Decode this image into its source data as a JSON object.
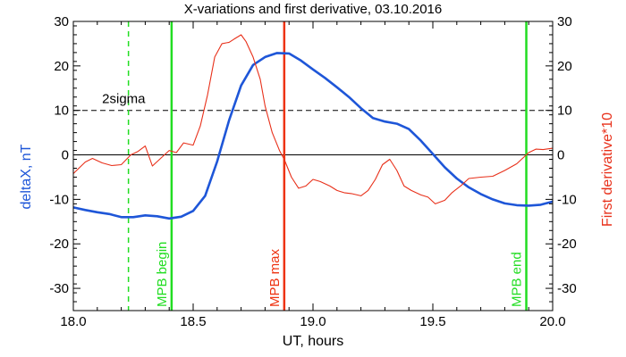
{
  "chart_data": {
    "type": "line",
    "title": "X-variations and first derivative, 03.10.2016",
    "xlabel": "UT, hours",
    "ylabel_left": "deltaX, nT",
    "ylabel_right": "First derivative*10",
    "xlim": [
      18.0,
      20.0
    ],
    "ylim": [
      -35,
      30
    ],
    "x_ticks": [
      18.0,
      18.5,
      19.0,
      19.5,
      20.0
    ],
    "x_tick_labels": [
      "18.0",
      "18.5",
      "19.0",
      "19.5",
      "20.0"
    ],
    "y_ticks": [
      -30,
      -20,
      -10,
      0,
      10,
      20,
      30
    ],
    "y_tick_labels": [
      "-30",
      "-20",
      "-10",
      "0",
      "10",
      "20",
      "30"
    ],
    "colors": {
      "deltaX": "#1e56d8",
      "derivative": "#e8301a",
      "mpb_green": "#22dd22",
      "mpb_red": "#ee3311",
      "axis": "#000000"
    },
    "series": [
      {
        "key": "deltaX",
        "axis": "left",
        "x": [
          18.0,
          18.05,
          18.1,
          18.15,
          18.2,
          18.25,
          18.3,
          18.35,
          18.4,
          18.45,
          18.5,
          18.55,
          18.6,
          18.65,
          18.7,
          18.75,
          18.8,
          18.85,
          18.9,
          18.95,
          19.0,
          19.05,
          19.1,
          19.15,
          19.2,
          19.25,
          19.3,
          19.35,
          19.4,
          19.45,
          19.5,
          19.55,
          19.6,
          19.65,
          19.7,
          19.75,
          19.8,
          19.85,
          19.9,
          19.95,
          20.0
        ],
        "y": [
          -11.8,
          -12.4,
          -12.9,
          -13.3,
          -14.0,
          -14.0,
          -13.6,
          -13.8,
          -14.3,
          -13.9,
          -12.6,
          -9.2,
          -1.5,
          7.8,
          15.6,
          20.2,
          22.0,
          22.9,
          22.8,
          21.2,
          19.2,
          17.3,
          15.2,
          13.0,
          10.5,
          8.3,
          7.5,
          7.0,
          5.8,
          3.2,
          0.2,
          -2.8,
          -5.3,
          -7.3,
          -8.8,
          -10.0,
          -10.9,
          -11.3,
          -11.4,
          -11.2,
          -10.5
        ]
      },
      {
        "key": "derivative",
        "axis": "right",
        "x": [
          18.0,
          18.05,
          18.08,
          18.12,
          18.16,
          18.2,
          18.24,
          18.27,
          18.3,
          18.33,
          18.36,
          18.4,
          18.43,
          18.46,
          18.5,
          18.53,
          18.56,
          18.59,
          18.62,
          18.65,
          18.67,
          18.7,
          18.72,
          18.75,
          18.78,
          18.8,
          18.83,
          18.86,
          18.88,
          18.91,
          18.94,
          18.97,
          19.0,
          19.03,
          19.07,
          19.1,
          19.13,
          19.16,
          19.2,
          19.23,
          19.26,
          19.29,
          19.32,
          19.35,
          19.38,
          19.41,
          19.45,
          19.48,
          19.51,
          19.55,
          19.58,
          19.62,
          19.65,
          19.7,
          19.75,
          19.8,
          19.85,
          19.9,
          19.93,
          19.96,
          20.0
        ],
        "y": [
          -4.2,
          -1.6,
          -0.8,
          -1.8,
          -2.4,
          -2.2,
          0.0,
          0.8,
          2.0,
          -2.5,
          -1.0,
          1.0,
          0.5,
          2.7,
          2.2,
          6.5,
          13.5,
          22.0,
          25.0,
          25.3,
          26.0,
          27.0,
          25.5,
          22.0,
          17.0,
          11.0,
          5.0,
          1.0,
          -1.0,
          -5.0,
          -7.5,
          -7.0,
          -5.5,
          -6.0,
          -7.0,
          -8.0,
          -8.5,
          -8.7,
          -9.2,
          -8.0,
          -5.5,
          -2.2,
          -1.0,
          -3.5,
          -7.0,
          -8.0,
          -9.0,
          -9.5,
          -11.0,
          -10.2,
          -8.5,
          -6.8,
          -5.3,
          -5.0,
          -4.8,
          -3.5,
          -2.0,
          0.5,
          1.3,
          1.2,
          1.5
        ]
      }
    ],
    "reference_lines": {
      "zero": 0,
      "two_sigma_level": 10,
      "two_sigma_label": "2sigma"
    },
    "markers": [
      {
        "key": "early",
        "x": 18.23,
        "style": "dashed",
        "color": "#22dd22",
        "label": ""
      },
      {
        "key": "mpb_begin",
        "x": 18.41,
        "style": "solid",
        "color": "#22dd22",
        "label": "MPB begin"
      },
      {
        "key": "mpb_max",
        "x": 18.88,
        "style": "solid",
        "color": "#ee3311",
        "label": "MPB max"
      },
      {
        "key": "mpb_end",
        "x": 19.89,
        "style": "solid",
        "color": "#22dd22",
        "label": "MPB end"
      }
    ]
  }
}
